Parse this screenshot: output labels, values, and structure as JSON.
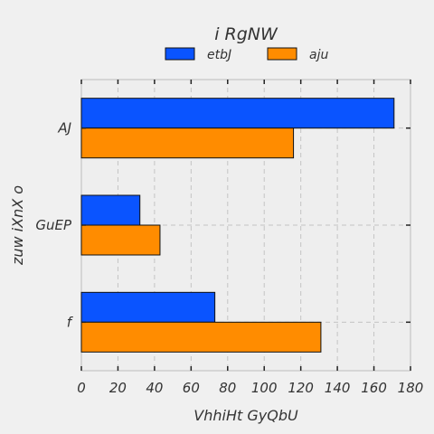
{
  "chart_data": {
    "type": "bar",
    "orientation": "horizontal",
    "title": "i RgNW",
    "xlabel": "VhhiHt GyQbU",
    "ylabel": "zuw iXnX o",
    "categories": [
      "AJ",
      "GuEP",
      "f"
    ],
    "series": [
      {
        "name": "etbJ",
        "color": "#0a54ff",
        "values": [
          171,
          32,
          73
        ]
      },
      {
        "name": "aju",
        "color": "#ff8c00",
        "values": [
          116,
          43,
          131
        ]
      }
    ],
    "xlim": [
      0,
      180
    ],
    "xticks": [
      0,
      20,
      40,
      60,
      80,
      100,
      120,
      140,
      160,
      180
    ],
    "grid": true,
    "legend_position": "top-center"
  }
}
